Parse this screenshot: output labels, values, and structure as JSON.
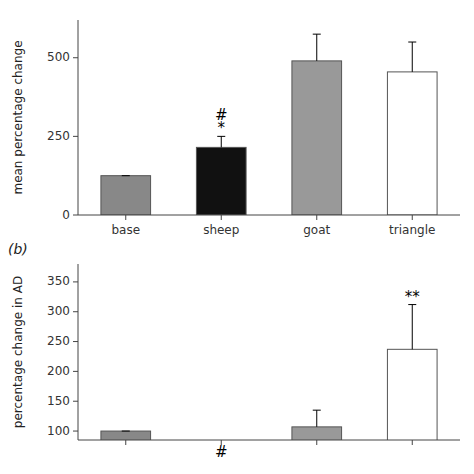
{
  "chart_data": [
    {
      "type": "bar",
      "categories": [
        "base",
        "sheep",
        "goat",
        "triangle"
      ],
      "values": [
        125,
        215,
        490,
        455
      ],
      "errors": [
        0,
        35,
        85,
        95
      ],
      "colors": [
        "#888888",
        "#111111",
        "#999999",
        "#ffffff"
      ],
      "ylabel": "mean percentage change",
      "ylim": [
        0,
        620
      ],
      "yticks": [
        0,
        250,
        500
      ],
      "annotations": [
        {
          "text": "*",
          "index": 1
        },
        {
          "text": "#",
          "index": 1
        }
      ]
    },
    {
      "type": "bar",
      "title": "(b)",
      "categories": [
        null,
        null,
        null,
        null
      ],
      "values": [
        100,
        null,
        107,
        237
      ],
      "errors": [
        0,
        null,
        28,
        75
      ],
      "colors": [
        "#888888",
        null,
        "#999999",
        "#ffffff"
      ],
      "ylabel": "percentage change in AD",
      "ylim": [
        85,
        380
      ],
      "yticks": [
        100,
        150,
        200,
        250,
        300,
        350
      ],
      "annotations": [
        {
          "text": "#",
          "index": 1
        },
        {
          "text": "**",
          "index": 3
        }
      ]
    }
  ]
}
